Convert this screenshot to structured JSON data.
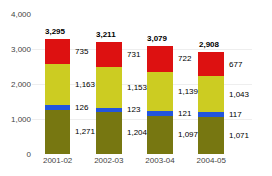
{
  "chart_data": {
    "type": "bar",
    "stacked": true,
    "data_labels": true,
    "grid": true,
    "categories": [
      "2001-02",
      "2002-03",
      "2003-04",
      "2004-05"
    ],
    "series": [
      {
        "color": "#777711",
        "values": [
          1271,
          1204,
          1097,
          1071
        ],
        "value_labels": [
          "1,271",
          "1,204",
          "1,097",
          "1,071"
        ]
      },
      {
        "color": "#2255dd",
        "values": [
          126,
          123,
          121,
          117
        ]
      },
      {
        "color": "#cccc22",
        "values": [
          1163,
          1153,
          1139,
          1043
        ],
        "value_labels": [
          "1,163",
          "1,153",
          "1,139",
          "1,043"
        ]
      },
      {
        "color": "#dd1111",
        "values": [
          735,
          731,
          722,
          677
        ]
      }
    ],
    "totals": [
      3295,
      3211,
      3079,
      2908
    ],
    "total_labels": [
      "3,295",
      "3,211",
      "3,079",
      "2,908"
    ],
    "ylim": [
      0,
      4000
    ],
    "yticks": [
      0,
      {
        "value": 1000,
        "label": "1,000"
      },
      {
        "value": 2000,
        "label": "2,000"
      },
      {
        "value": 3000,
        "label": "3,000"
      },
      {
        "value": 4000,
        "label": "4,000"
      }
    ]
  }
}
